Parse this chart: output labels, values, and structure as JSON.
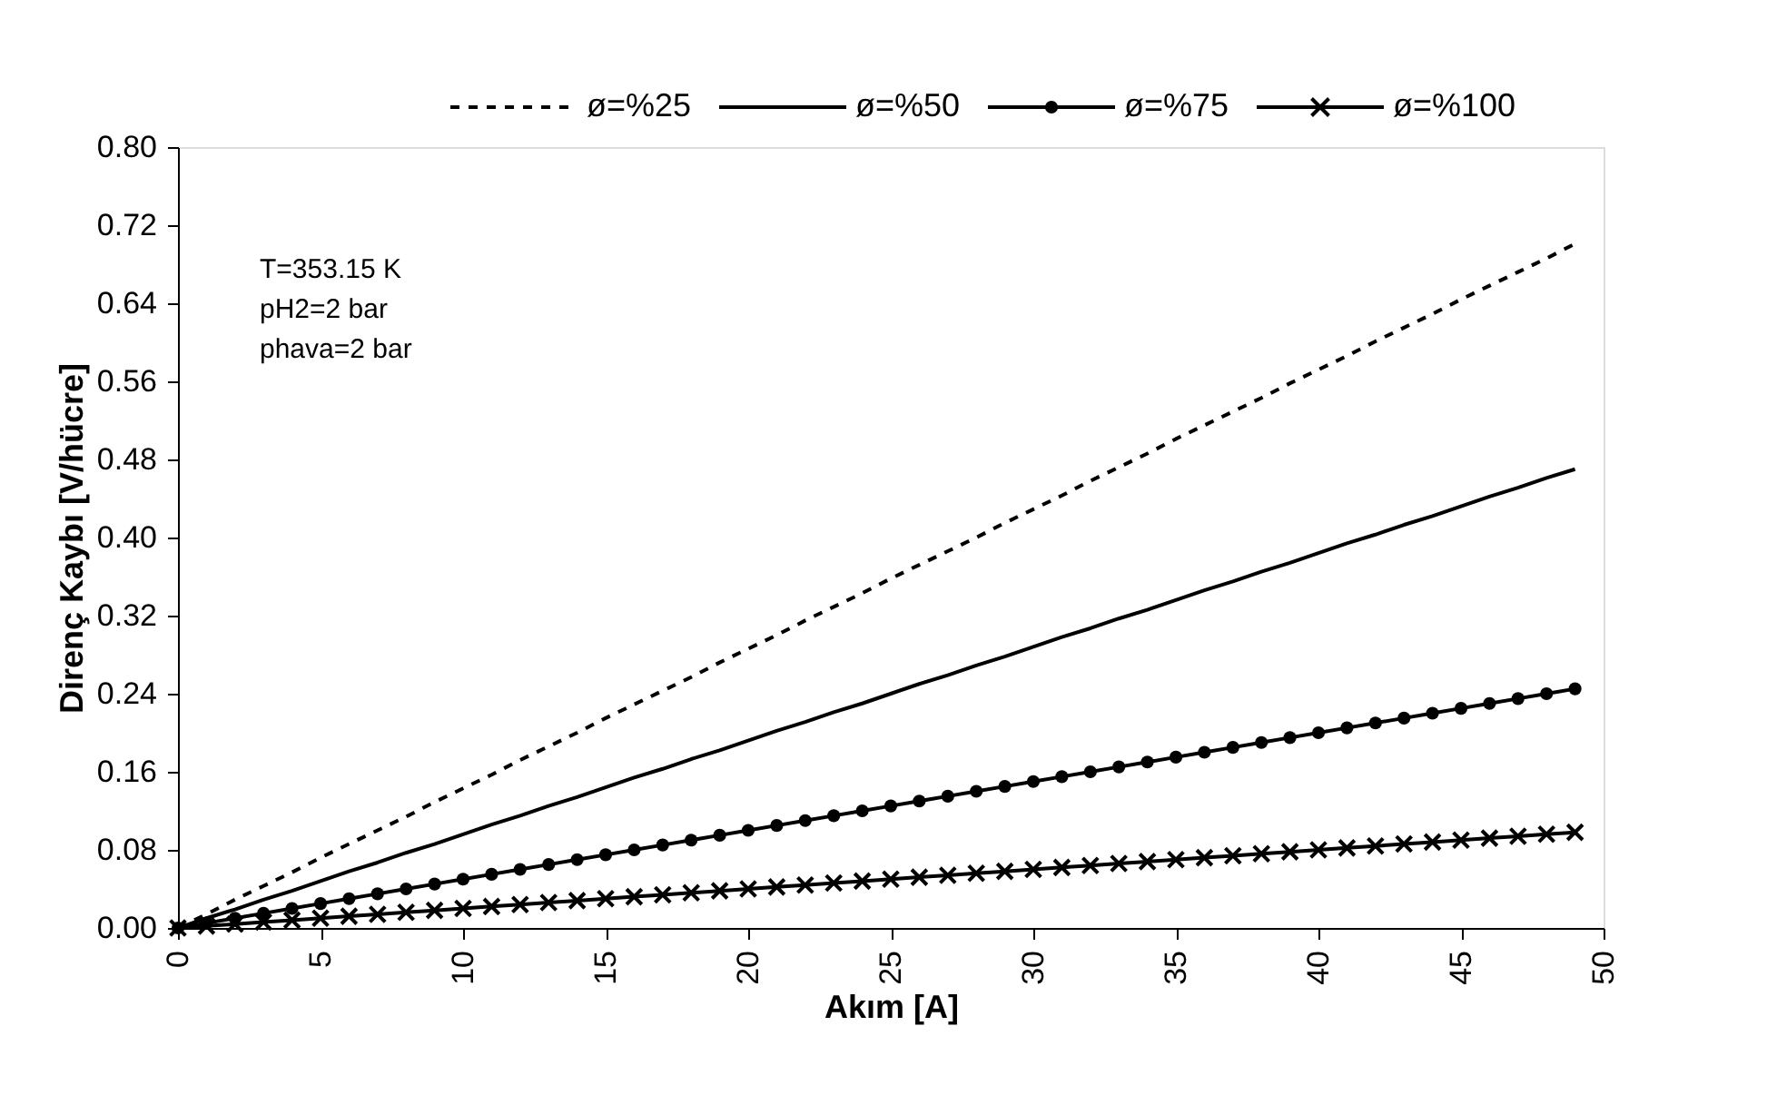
{
  "chart_data": {
    "type": "line",
    "xlabel": "Akım [A]",
    "ylabel": "Direnç Kaybı [V/hücre]",
    "xlim": [
      0,
      50
    ],
    "xticks": [
      0,
      5,
      10,
      15,
      20,
      25,
      30,
      35,
      40,
      45,
      50
    ],
    "ylim": [
      0,
      0.8
    ],
    "yticks": [
      {
        "value": 0,
        "label": "0.00"
      },
      0.08,
      0.16,
      0.24,
      0.32,
      {
        "value": 0.4,
        "label": "0.40"
      },
      0.48,
      0.56,
      0.64,
      0.72,
      {
        "value": 0.8,
        "label": "0.80"
      }
    ],
    "grid": false,
    "legend": "top",
    "annotations": [
      "T=353.15 K",
      "pH2=2 bar",
      "phava=2 bar"
    ],
    "series": [
      {
        "name": "ø=%25",
        "color": "#000000",
        "line_style": "dashed",
        "marker": "none",
        "x": [
          0,
          1,
          2,
          3,
          4,
          5,
          6,
          7,
          8,
          9,
          10,
          11,
          12,
          13,
          14,
          15,
          16,
          17,
          18,
          19,
          20,
          21,
          22,
          23,
          24,
          25,
          26,
          27,
          28,
          29,
          30,
          31,
          32,
          33,
          34,
          35,
          36,
          37,
          38,
          39,
          40,
          41,
          42,
          43,
          44,
          45,
          46,
          47,
          48,
          49
        ],
        "values": [
          0,
          0.014,
          0.029,
          0.043,
          0.057,
          0.072,
          0.086,
          0.1,
          0.114,
          0.129,
          0.143,
          0.157,
          0.172,
          0.186,
          0.2,
          0.215,
          0.229,
          0.243,
          0.257,
          0.272,
          0.286,
          0.3,
          0.315,
          0.329,
          0.343,
          0.358,
          0.372,
          0.386,
          0.4,
          0.415,
          0.429,
          0.443,
          0.458,
          0.472,
          0.486,
          0.501,
          0.515,
          0.529,
          0.543,
          0.558,
          0.572,
          0.586,
          0.601,
          0.615,
          0.629,
          0.644,
          0.658,
          0.672,
          0.686,
          0.701
        ]
      },
      {
        "name": "ø=%50",
        "color": "#000000",
        "line_style": "solid",
        "marker": "none",
        "x": [
          0,
          1,
          2,
          3,
          4,
          5,
          6,
          7,
          8,
          9,
          10,
          11,
          12,
          13,
          14,
          15,
          16,
          17,
          18,
          19,
          20,
          21,
          22,
          23,
          24,
          25,
          26,
          27,
          28,
          29,
          30,
          31,
          32,
          33,
          34,
          35,
          36,
          37,
          38,
          39,
          40,
          41,
          42,
          43,
          44,
          45,
          46,
          47,
          48,
          49
        ],
        "values": [
          0,
          0.01,
          0.019,
          0.029,
          0.038,
          0.048,
          0.058,
          0.067,
          0.077,
          0.086,
          0.096,
          0.106,
          0.115,
          0.125,
          0.134,
          0.144,
          0.154,
          0.163,
          0.173,
          0.182,
          0.192,
          0.202,
          0.211,
          0.221,
          0.23,
          0.24,
          0.25,
          0.259,
          0.269,
          0.278,
          0.288,
          0.298,
          0.307,
          0.317,
          0.326,
          0.336,
          0.346,
          0.355,
          0.365,
          0.374,
          0.384,
          0.394,
          0.403,
          0.413,
          0.422,
          0.432,
          0.442,
          0.451,
          0.461,
          0.47
        ]
      },
      {
        "name": "ø=%75",
        "color": "#000000",
        "line_style": "solid",
        "marker": "circle",
        "x": [
          0,
          1,
          2,
          3,
          4,
          5,
          6,
          7,
          8,
          9,
          10,
          11,
          12,
          13,
          14,
          15,
          16,
          17,
          18,
          19,
          20,
          21,
          22,
          23,
          24,
          25,
          26,
          27,
          28,
          29,
          30,
          31,
          32,
          33,
          34,
          35,
          36,
          37,
          38,
          39,
          40,
          41,
          42,
          43,
          44,
          45,
          46,
          47,
          48,
          49
        ],
        "values": [
          0,
          0.005,
          0.01,
          0.015,
          0.02,
          0.025,
          0.03,
          0.035,
          0.04,
          0.045,
          0.05,
          0.055,
          0.06,
          0.065,
          0.07,
          0.075,
          0.08,
          0.085,
          0.09,
          0.095,
          0.1,
          0.105,
          0.11,
          0.115,
          0.12,
          0.125,
          0.13,
          0.135,
          0.14,
          0.145,
          0.15,
          0.155,
          0.16,
          0.165,
          0.17,
          0.175,
          0.18,
          0.185,
          0.19,
          0.195,
          0.2,
          0.205,
          0.21,
          0.215,
          0.22,
          0.225,
          0.23,
          0.235,
          0.24,
          0.245
        ]
      },
      {
        "name": "ø=%100",
        "color": "#000000",
        "line_style": "solid",
        "marker": "cross",
        "x": [
          0,
          1,
          2,
          3,
          4,
          5,
          6,
          7,
          8,
          9,
          10,
          11,
          12,
          13,
          14,
          15,
          16,
          17,
          18,
          19,
          20,
          21,
          22,
          23,
          24,
          25,
          26,
          27,
          28,
          29,
          30,
          31,
          32,
          33,
          34,
          35,
          36,
          37,
          38,
          39,
          40,
          41,
          42,
          43,
          44,
          45,
          46,
          47,
          48,
          49
        ],
        "values": [
          0,
          0.002,
          0.004,
          0.006,
          0.008,
          0.01,
          0.012,
          0.014,
          0.016,
          0.018,
          0.02,
          0.022,
          0.024,
          0.026,
          0.028,
          0.03,
          0.032,
          0.034,
          0.036,
          0.038,
          0.04,
          0.042,
          0.044,
          0.046,
          0.048,
          0.05,
          0.052,
          0.054,
          0.056,
          0.058,
          0.06,
          0.062,
          0.064,
          0.066,
          0.068,
          0.07,
          0.072,
          0.074,
          0.076,
          0.078,
          0.08,
          0.082,
          0.084,
          0.086,
          0.088,
          0.09,
          0.092,
          0.094,
          0.096,
          0.098
        ]
      }
    ]
  }
}
